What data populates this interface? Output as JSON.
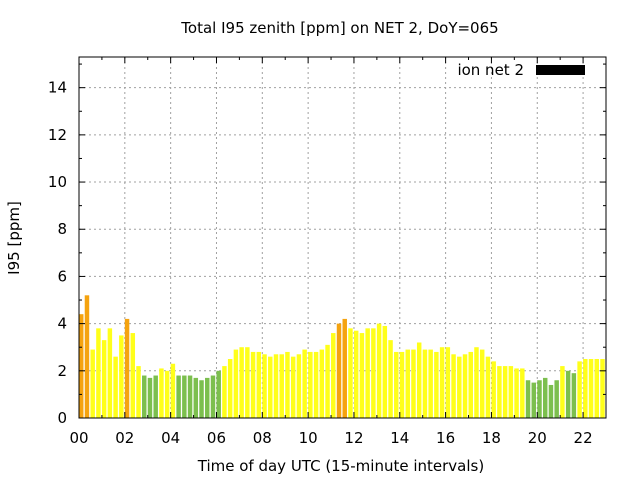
{
  "chart_data": {
    "type": "bar",
    "title": "Total I95 zenith [ppm] on NET 2, DoY=065",
    "xlabel": "Time of day UTC (15-minute intervals)",
    "ylabel": "I95 [ppm]",
    "xlim": [
      0,
      23
    ],
    "ylim": [
      0,
      15.3
    ],
    "grid": true,
    "legend_position": "top-right",
    "x_ticks": [
      "00",
      "02",
      "04",
      "06",
      "08",
      "10",
      "12",
      "14",
      "16",
      "18",
      "20",
      "22"
    ],
    "y_ticks": [
      "0",
      "2",
      "4",
      "6",
      "8",
      "10",
      "12",
      "14"
    ],
    "colors": {
      "green": "#7cbf4e",
      "yellow": "#ffff1a",
      "orange": "#f5a30f",
      "legend_swatch": "#000000"
    },
    "series": [
      {
        "name": "ion net 2",
        "x": [
          0.0,
          0.25,
          0.5,
          0.75,
          1.0,
          1.25,
          1.5,
          1.75,
          2.0,
          2.25,
          2.5,
          2.75,
          3.0,
          3.25,
          3.5,
          3.75,
          4.0,
          4.25,
          4.5,
          4.75,
          5.0,
          5.25,
          5.5,
          5.75,
          6.0,
          6.25,
          6.5,
          6.75,
          7.0,
          7.25,
          7.5,
          7.75,
          8.0,
          8.25,
          8.5,
          8.75,
          9.0,
          9.25,
          9.5,
          9.75,
          10.0,
          10.25,
          10.5,
          10.75,
          11.0,
          11.25,
          11.5,
          11.75,
          12.0,
          12.25,
          12.5,
          12.75,
          13.0,
          13.25,
          13.5,
          13.75,
          14.0,
          14.25,
          14.5,
          14.75,
          15.0,
          15.25,
          15.5,
          15.75,
          16.0,
          16.25,
          16.5,
          16.75,
          17.0,
          17.25,
          17.5,
          17.75,
          18.0,
          18.25,
          18.5,
          18.75,
          19.0,
          19.25,
          19.5,
          19.75,
          20.0,
          20.25,
          20.5,
          20.75,
          21.0,
          21.25,
          21.5,
          21.75,
          22.0,
          22.25,
          22.5,
          22.75
        ],
        "values": [
          4.4,
          5.2,
          2.9,
          3.8,
          3.3,
          3.8,
          2.6,
          3.5,
          4.2,
          3.6,
          2.2,
          1.8,
          1.7,
          1.8,
          2.1,
          2.0,
          2.3,
          1.8,
          1.8,
          1.8,
          1.7,
          1.6,
          1.7,
          1.8,
          2.0,
          2.2,
          2.5,
          2.9,
          3.0,
          3.0,
          2.8,
          2.8,
          2.7,
          2.6,
          2.7,
          2.7,
          2.8,
          2.6,
          2.7,
          2.9,
          2.8,
          2.8,
          2.9,
          3.1,
          3.6,
          4.0,
          4.2,
          3.8,
          3.7,
          3.6,
          3.8,
          3.8,
          4.0,
          3.9,
          3.3,
          2.8,
          2.8,
          2.9,
          2.9,
          3.2,
          2.9,
          2.9,
          2.8,
          3.0,
          3.0,
          2.7,
          2.6,
          2.7,
          2.8,
          3.0,
          2.9,
          2.6,
          2.4,
          2.2,
          2.2,
          2.2,
          2.1,
          2.1,
          1.6,
          1.5,
          1.6,
          1.7,
          1.4,
          1.6,
          2.2,
          2.0,
          1.9,
          2.4,
          2.5,
          2.5,
          2.5,
          2.5
        ],
        "bar_colors": [
          "orange",
          "orange",
          "yellow",
          "yellow",
          "yellow",
          "yellow",
          "yellow",
          "yellow",
          "orange",
          "yellow",
          "yellow",
          "green",
          "green",
          "green",
          "yellow",
          "yellow",
          "yellow",
          "green",
          "green",
          "green",
          "green",
          "green",
          "green",
          "green",
          "green",
          "yellow",
          "yellow",
          "yellow",
          "yellow",
          "yellow",
          "yellow",
          "yellow",
          "yellow",
          "yellow",
          "yellow",
          "yellow",
          "yellow",
          "yellow",
          "yellow",
          "yellow",
          "yellow",
          "yellow",
          "yellow",
          "yellow",
          "yellow",
          "orange",
          "orange",
          "yellow",
          "yellow",
          "yellow",
          "yellow",
          "yellow",
          "yellow",
          "yellow",
          "yellow",
          "yellow",
          "yellow",
          "yellow",
          "yellow",
          "yellow",
          "yellow",
          "yellow",
          "yellow",
          "yellow",
          "yellow",
          "yellow",
          "yellow",
          "yellow",
          "yellow",
          "yellow",
          "yellow",
          "yellow",
          "yellow",
          "yellow",
          "yellow",
          "yellow",
          "yellow",
          "yellow",
          "green",
          "green",
          "green",
          "green",
          "green",
          "green",
          "yellow",
          "green",
          "green",
          "yellow",
          "yellow",
          "yellow",
          "yellow",
          "yellow"
        ]
      }
    ]
  }
}
